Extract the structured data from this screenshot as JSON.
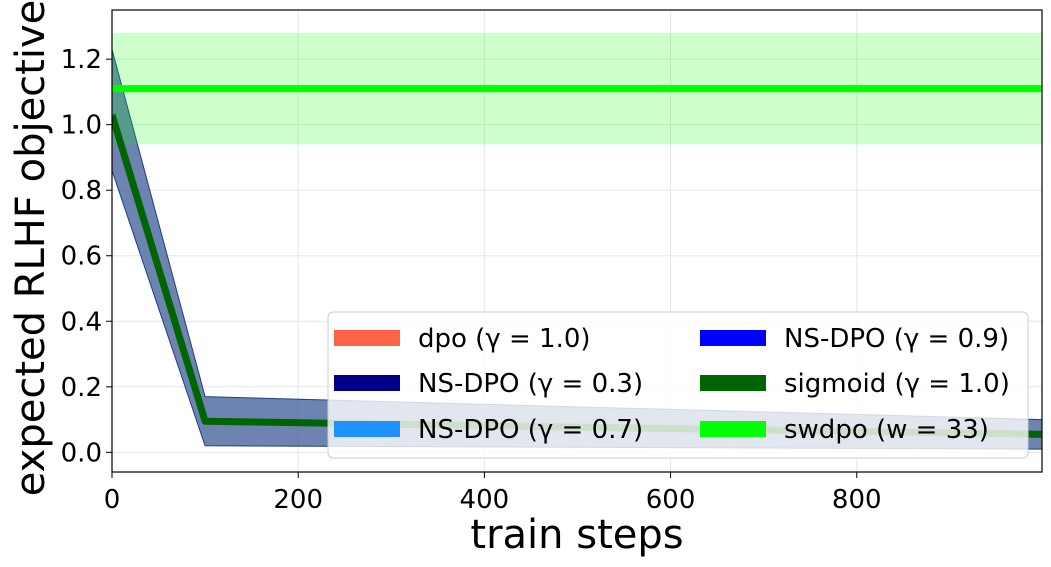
{
  "chart_data": {
    "type": "line",
    "xlabel": "train steps",
    "ylabel": "expected RLHF objective",
    "xlim": [
      0,
      999
    ],
    "ylim": [
      -0.06,
      1.35
    ],
    "xticks": [
      0,
      200,
      400,
      600,
      800
    ],
    "yticks": [
      0.0,
      0.2,
      0.4,
      0.6,
      0.8,
      1.0,
      1.2
    ],
    "grid": true,
    "legend_placement": "lower-right",
    "legend_columns": 2,
    "legend_order": [
      0,
      1,
      2,
      3,
      4,
      5
    ],
    "series": [
      {
        "name": "dpo (γ = 1.0)",
        "color": "#ff6347",
        "x": [
          0,
          100,
          999
        ],
        "y": [
          1.05,
          0.095,
          0.055
        ],
        "band_lower": [
          0.87,
          0.02,
          0.01
        ],
        "band_upper": [
          1.23,
          0.17,
          0.1
        ],
        "visible": false
      },
      {
        "name": "NS-DPO (γ = 0.3)",
        "color": "#00008b",
        "x": [
          0,
          100,
          999
        ],
        "y": [
          1.05,
          0.095,
          0.055
        ],
        "band_lower": [
          0.87,
          0.02,
          0.01
        ],
        "band_upper": [
          1.23,
          0.17,
          0.1
        ],
        "visible": false
      },
      {
        "name": "NS-DPO (γ = 0.7)",
        "color": "#1e90ff",
        "x": [
          0,
          100,
          999
        ],
        "y": [
          1.05,
          0.095,
          0.055
        ],
        "band_lower": [
          0.87,
          0.02,
          0.01
        ],
        "band_upper": [
          1.23,
          0.17,
          0.1
        ],
        "visible": false
      },
      {
        "name": "NS-DPO (γ = 0.9)",
        "color": "#0000ff",
        "x": [
          0,
          100,
          999
        ],
        "y": [
          1.05,
          0.095,
          0.055
        ],
        "band_lower": [
          0.87,
          0.02,
          0.01
        ],
        "band_upper": [
          1.23,
          0.17,
          0.1
        ],
        "visible": false
      },
      {
        "name": "sigmoid (γ = 1.0)",
        "color": "#006400",
        "x": [
          0,
          100,
          999
        ],
        "y": [
          1.03,
          0.095,
          0.055
        ],
        "band_lower": [
          0.86,
          0.02,
          0.01
        ],
        "band_upper": [
          1.23,
          0.17,
          0.1
        ],
        "band_color": "#2f4f8f",
        "visible": true
      },
      {
        "name": "swdpo (w = 33)",
        "color": "#00ff00",
        "x": [
          0,
          999
        ],
        "y": [
          1.11,
          1.11
        ],
        "band_lower": [
          0.94,
          0.94
        ],
        "band_upper": [
          1.28,
          1.28
        ],
        "band_color": "#00ff00",
        "visible": true
      }
    ]
  }
}
